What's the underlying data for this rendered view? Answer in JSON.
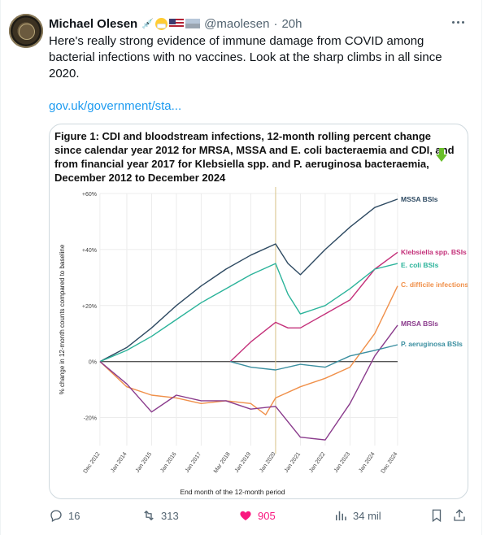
{
  "post": {
    "author_name": "Michael Olesen",
    "handle": "@maolesen",
    "separator": "·",
    "time": "20h",
    "text": "Here's really strong evidence of immune damage from COVID among bacterial infections with no vaccines. Look at the sharp climbs in all since 2020.",
    "link": "gov.uk/government/sta..."
  },
  "figure": {
    "title": "Figure 1: CDI and bloodstream infections, 12-month rolling percent change since calendar year 2012 for MRSA, MSSA and E. coli bacteraemia and CDI, and from financial year 2017 for Klebsiella spp. and P. aeruginosa bacteraemia, December 2012 to December 2024"
  },
  "chart_data": {
    "type": "line",
    "xlabel": "End month of the 12-month period",
    "ylabel": "% change in 12-month counts compared to baseline",
    "x_ticks": [
      "Dec 2012",
      "Jan 2014",
      "Jan 2015",
      "Jan 2016",
      "Jan 2017",
      "Mar 2018",
      "Jan 2019",
      "Jan 2020",
      "Jan 2021",
      "Jan 2022",
      "Jan 2023",
      "Jan 2024",
      "Dec 2024"
    ],
    "y_ticks": [
      "+60%",
      "+40%",
      "+20%",
      "0%",
      "-20%"
    ],
    "ylim": [
      -30,
      60
    ],
    "grid": true,
    "legend": "inline labels at right end of each series",
    "annotation": "vertical line at Jan 2020",
    "series": [
      {
        "name": "MSSA BSIs",
        "color": "#2e4a62",
        "x": [
          2012.92,
          2014,
          2015,
          2016,
          2017,
          2018,
          2019,
          2020,
          2020.5,
          2021,
          2022,
          2023,
          2024,
          2024.92
        ],
        "values": [
          0,
          5,
          12,
          20,
          27,
          33,
          38,
          42,
          35,
          31,
          40,
          48,
          55,
          58
        ]
      },
      {
        "name": "Klebsiella spp. BSIs",
        "color": "#c4317a",
        "x": [
          2018.17,
          2019,
          2020,
          2020.5,
          2021,
          2022,
          2023,
          2024,
          2024.92
        ],
        "values": [
          0,
          7,
          14,
          12,
          12,
          17,
          22,
          33,
          39
        ]
      },
      {
        "name": "E. coli BSIs",
        "color": "#2bb39a",
        "x": [
          2012.92,
          2014,
          2015,
          2016,
          2017,
          2018,
          2019,
          2020,
          2020.5,
          2021,
          2022,
          2023,
          2024,
          2024.92
        ],
        "values": [
          0,
          4,
          9,
          15,
          21,
          26,
          31,
          35,
          24,
          17,
          20,
          26,
          33,
          35
        ]
      },
      {
        "name": "C. difficile infections",
        "color": "#f0904a",
        "x": [
          2012.92,
          2014,
          2015,
          2016,
          2017,
          2018,
          2019,
          2019.6,
          2020,
          2021,
          2022,
          2023,
          2024,
          2024.92
        ],
        "values": [
          0,
          -9,
          -12,
          -13,
          -15,
          -14,
          -15,
          -19,
          -13,
          -9,
          -6,
          -2,
          10,
          27
        ]
      },
      {
        "name": "MRSA BSIs",
        "color": "#8a3b8c",
        "x": [
          2012.92,
          2014,
          2015,
          2016,
          2017,
          2018,
          2019,
          2020,
          2021,
          2022,
          2023,
          2024,
          2024.92
        ],
        "values": [
          0,
          -8,
          -18,
          -12,
          -14,
          -14,
          -17,
          -16,
          -27,
          -28,
          -15,
          2,
          13
        ]
      },
      {
        "name": "P. aeruginosa BSIs",
        "color": "#3b8fa0",
        "x": [
          2018.17,
          2019,
          2020,
          2021,
          2022,
          2023,
          2024,
          2024.92
        ],
        "values": [
          0,
          -2,
          -3,
          -1,
          -2,
          2,
          4,
          6
        ]
      }
    ]
  },
  "actions": {
    "replies": "16",
    "reposts": "313",
    "likes": "905",
    "views": "34 mil"
  },
  "colors": {
    "link": "#1d9bf0",
    "like": "#f91880",
    "muted": "#536471"
  }
}
